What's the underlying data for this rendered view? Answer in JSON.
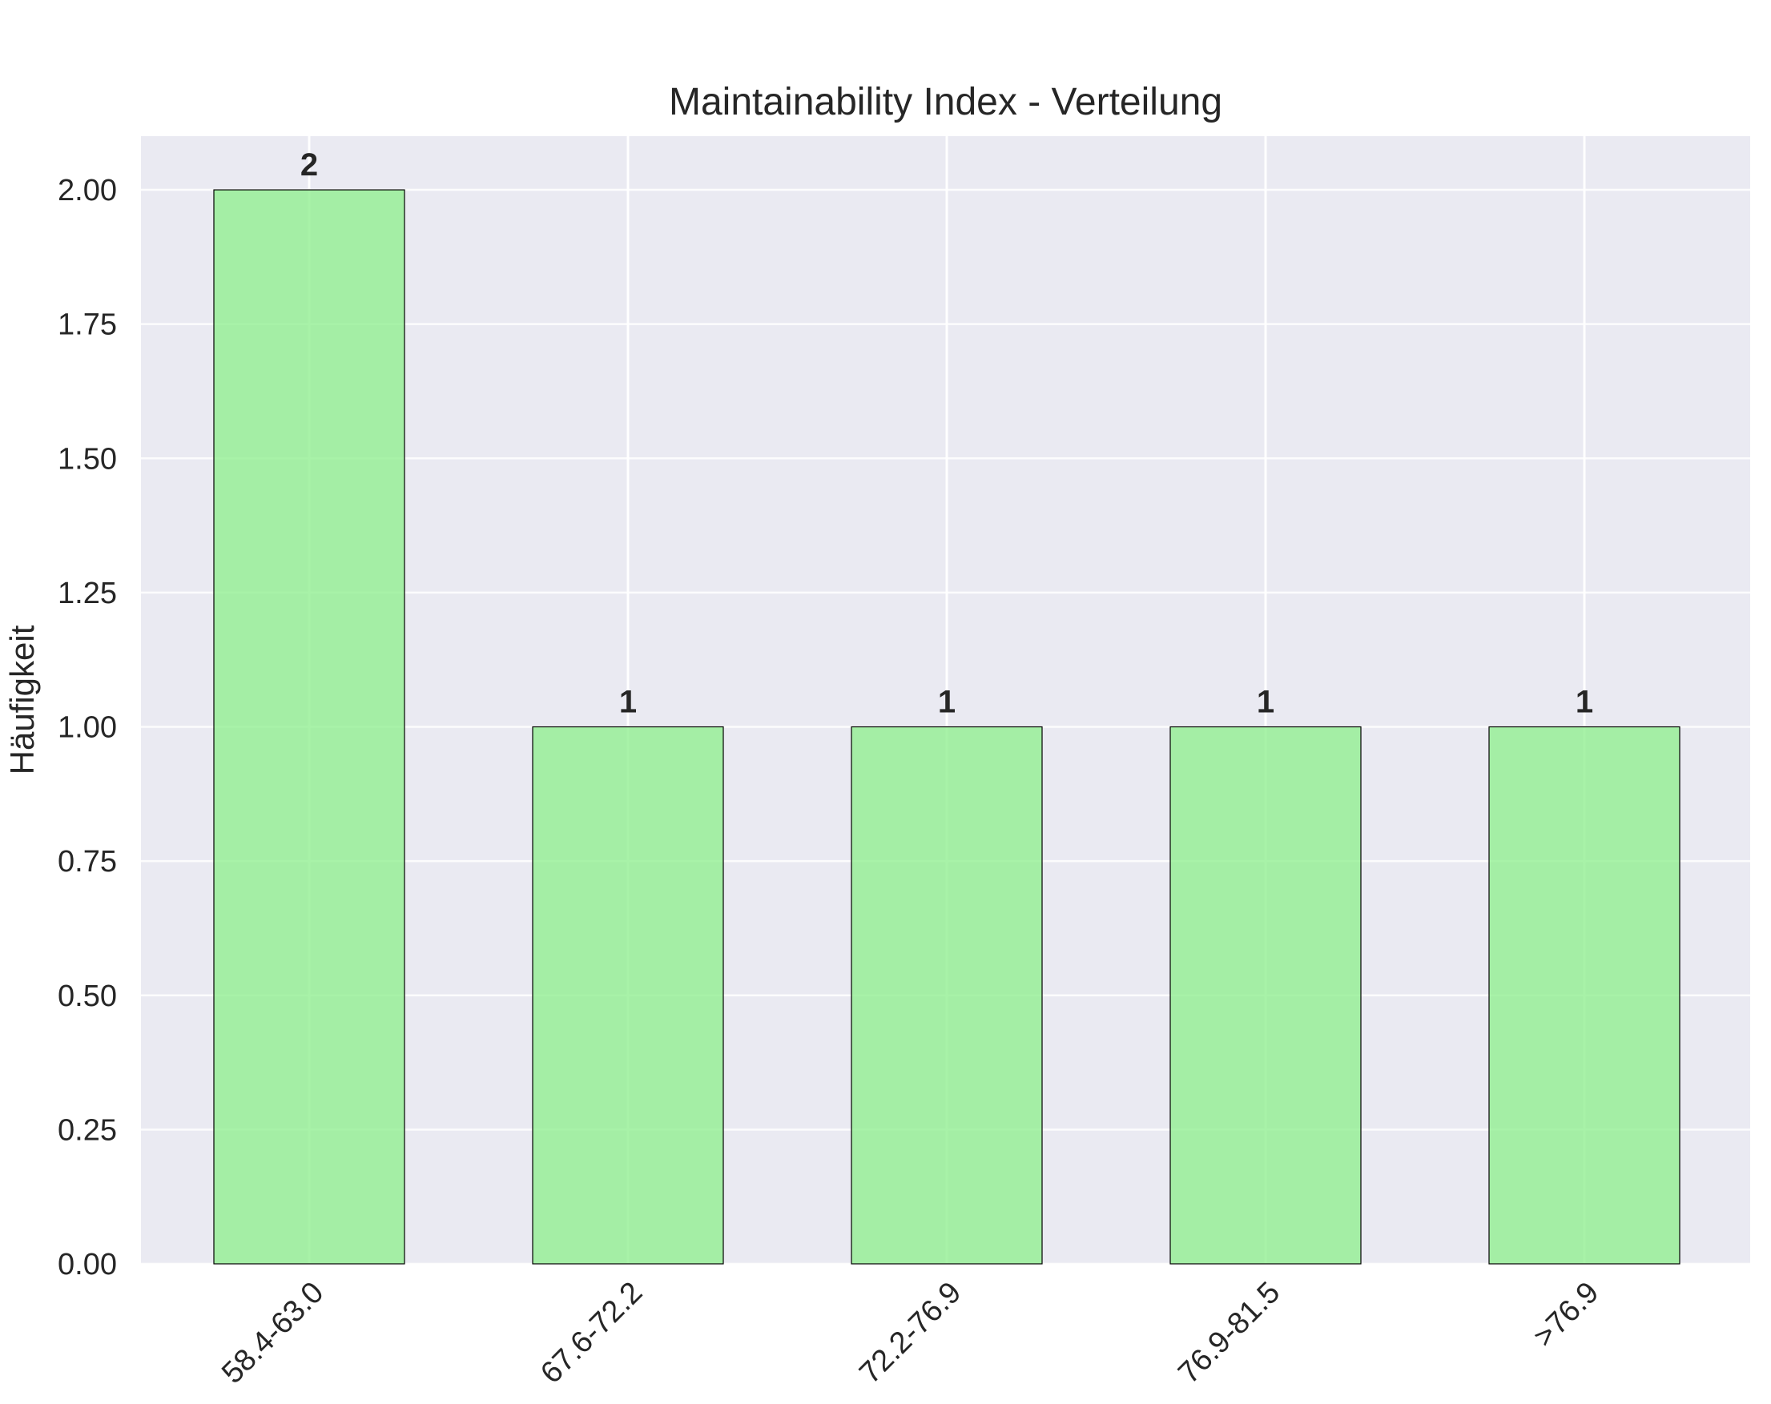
{
  "chart_data": {
    "type": "bar",
    "title": "Maintainability Index - Verteilung",
    "xlabel": "",
    "ylabel": "Häufigkeit",
    "categories": [
      "58.4-63.0",
      "67.6-72.2",
      "72.2-76.9",
      "76.9-81.5",
      ">76.9"
    ],
    "values": [
      2,
      1,
      1,
      1,
      1
    ],
    "data_labels": [
      "2",
      "1",
      "1",
      "1",
      "1"
    ],
    "ylim": [
      0,
      2.1
    ],
    "yticks": [
      "0.00",
      "0.25",
      "0.50",
      "0.75",
      "1.00",
      "1.25",
      "1.50",
      "1.75",
      "2.00"
    ],
    "grid": true,
    "legend": "none",
    "colors": {
      "bar_fill": "#90ee90",
      "bar_edge": "#000000",
      "plot_background": "#eaeaf2",
      "grid": "#ffffff"
    }
  }
}
